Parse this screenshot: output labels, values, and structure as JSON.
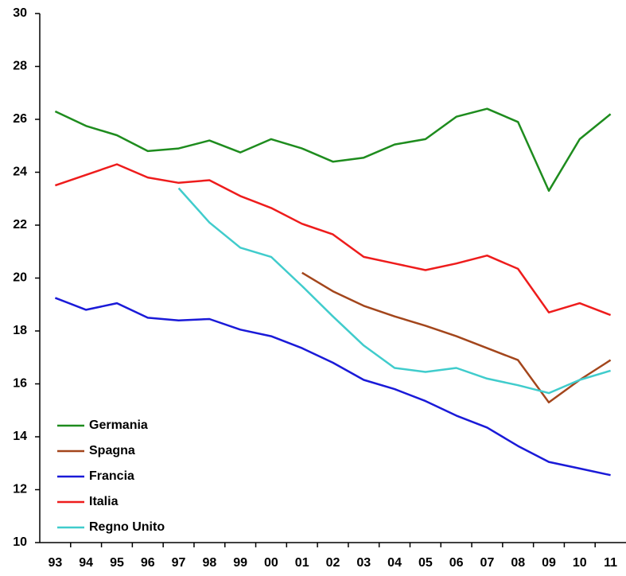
{
  "chart_data": {
    "type": "line",
    "categories": [
      "93",
      "94",
      "95",
      "96",
      "97",
      "98",
      "99",
      "00",
      "01",
      "02",
      "03",
      "04",
      "05",
      "06",
      "07",
      "08",
      "09",
      "10",
      "11"
    ],
    "series": [
      {
        "name": "Germania",
        "color": "#1e8c1e",
        "values": [
          26.3,
          25.75,
          25.4,
          24.8,
          24.9,
          25.2,
          24.75,
          25.25,
          24.9,
          24.4,
          24.55,
          25.05,
          25.25,
          26.1,
          26.4,
          25.9,
          23.3,
          25.25,
          26.2
        ]
      },
      {
        "name": "Spagna",
        "color": "#a3461c",
        "values": [
          null,
          null,
          null,
          null,
          null,
          null,
          null,
          null,
          20.2,
          19.5,
          18.95,
          18.55,
          18.2,
          17.8,
          17.35,
          16.9,
          15.3,
          16.15,
          16.9
        ]
      },
      {
        "name": "Francia",
        "color": "#1a1ad8",
        "values": [
          19.25,
          18.8,
          19.05,
          18.5,
          18.4,
          18.45,
          18.05,
          17.8,
          17.35,
          16.8,
          16.15,
          15.8,
          15.35,
          14.8,
          14.35,
          13.65,
          13.05,
          12.8,
          12.55
        ]
      },
      {
        "name": "Italia",
        "color": "#ee1c1c",
        "values": [
          23.5,
          23.9,
          24.3,
          23.8,
          23.6,
          23.7,
          23.1,
          22.65,
          22.05,
          21.65,
          20.8,
          20.55,
          20.3,
          20.55,
          20.85,
          20.35,
          18.7,
          19.05,
          18.6
        ]
      },
      {
        "name": "Regno Unito",
        "color": "#40cccc",
        "values": [
          null,
          null,
          null,
          null,
          23.4,
          22.1,
          21.15,
          20.8,
          19.7,
          18.55,
          17.45,
          16.6,
          16.45,
          16.6,
          16.2,
          15.95,
          15.65,
          16.15,
          16.5
        ]
      }
    ],
    "ylim": [
      10,
      30
    ],
    "yticks": [
      10,
      12,
      14,
      16,
      18,
      20,
      22,
      24,
      26,
      28,
      30
    ],
    "grid": false,
    "legend": "lower-left"
  }
}
